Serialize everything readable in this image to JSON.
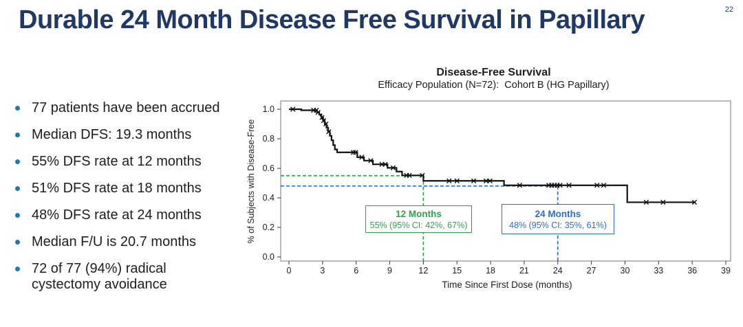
{
  "slide": {
    "title": "Durable 24 Month Disease Free Survival in Papillary",
    "page_number": "22"
  },
  "bullets": {
    "items": [
      "77 patients have been accrued",
      "Median DFS: 19.3 months",
      "55% DFS rate at 12 months",
      "51% DFS rate at 18 months",
      "48% DFS rate at 24 months",
      "Median F/U is 20.7 months",
      "72 of 77 (94%) radical cystectomy avoidance"
    ],
    "bullet_color": "#2479ab"
  },
  "chart_data": {
    "type": "line",
    "subtype": "kaplan-meier-step",
    "title": "Disease-Free Survival",
    "subtitle": "Efficacy Population (N=72):  Cohort B (HG Papillary)",
    "xlabel": "Time Since First Dose (months)",
    "ylabel": "% of Subjects with Disease-Free",
    "xlim": [
      0,
      39
    ],
    "ylim": [
      0.0,
      1.0
    ],
    "grid": false,
    "x_ticks": [
      0,
      3,
      6,
      9,
      12,
      15,
      18,
      21,
      24,
      27,
      30,
      33,
      36,
      39
    ],
    "y_ticks": [
      {
        "label": "1.0",
        "v": 1.0
      },
      {
        "label": "0.8",
        "v": 0.8
      },
      {
        "label": "0.6",
        "v": 0.6
      },
      {
        "label": "0.4",
        "v": 0.4
      },
      {
        "label": "0.2",
        "v": 0.2
      },
      {
        "label": "0.0",
        "v": 0.0
      }
    ],
    "series": [
      {
        "name": "Disease-Free Survival (Cohort B)",
        "color": "#111111",
        "end_time": 36.3,
        "points": [
          [
            0,
            1.0
          ],
          [
            1.1,
            0.993
          ],
          [
            2.5,
            0.979
          ],
          [
            2.7,
            0.965
          ],
          [
            2.9,
            0.944
          ],
          [
            3.05,
            0.923
          ],
          [
            3.2,
            0.9
          ],
          [
            3.35,
            0.875
          ],
          [
            3.5,
            0.848
          ],
          [
            3.65,
            0.82
          ],
          [
            3.8,
            0.79
          ],
          [
            3.95,
            0.757
          ],
          [
            4.1,
            0.728
          ],
          [
            4.3,
            0.708
          ],
          [
            6.1,
            0.675
          ],
          [
            6.7,
            0.652
          ],
          [
            7.5,
            0.627
          ],
          [
            8.8,
            0.603
          ],
          [
            9.6,
            0.578
          ],
          [
            10.1,
            0.552
          ],
          [
            12.0,
            0.515
          ],
          [
            19.2,
            0.485
          ],
          [
            30.2,
            0.37
          ]
        ]
      }
    ],
    "censor_marks": [
      [
        0.35,
        1.0
      ],
      [
        2.2,
        0.993
      ],
      [
        2.45,
        0.993
      ],
      [
        2.6,
        0.979
      ],
      [
        2.95,
        0.944
      ],
      [
        3.1,
        0.923
      ],
      [
        3.3,
        0.9
      ],
      [
        3.55,
        0.848
      ],
      [
        5.75,
        0.708
      ],
      [
        5.95,
        0.708
      ],
      [
        6.5,
        0.675
      ],
      [
        7.3,
        0.652
      ],
      [
        8.3,
        0.627
      ],
      [
        8.6,
        0.627
      ],
      [
        9.3,
        0.603
      ],
      [
        10.5,
        0.552
      ],
      [
        10.75,
        0.552
      ],
      [
        11.9,
        0.552
      ],
      [
        14.3,
        0.515
      ],
      [
        15.0,
        0.515
      ],
      [
        16.5,
        0.515
      ],
      [
        17.6,
        0.515
      ],
      [
        17.95,
        0.515
      ],
      [
        20.6,
        0.485
      ],
      [
        23.2,
        0.485
      ],
      [
        23.45,
        0.485
      ],
      [
        23.7,
        0.485
      ],
      [
        23.95,
        0.485
      ],
      [
        24.2,
        0.485
      ],
      [
        25.0,
        0.485
      ],
      [
        27.5,
        0.485
      ],
      [
        28.1,
        0.485
      ],
      [
        31.9,
        0.37
      ],
      [
        33.4,
        0.37
      ],
      [
        36.2,
        0.37
      ]
    ],
    "annotations": [
      {
        "title": "12 Months",
        "detail": "55% (95% CI: 42%, 67%)",
        "x_month": 12,
        "y_value": 0.55,
        "color": "#2aa34c"
      },
      {
        "title": "24 Months",
        "detail": "48% (95% CI: 35%, 61%)",
        "x_month": 24,
        "y_value": 0.48,
        "color": "#2d6fbe"
      }
    ],
    "frame_color": "#a3a3a3",
    "title_color": "#1f3864"
  }
}
